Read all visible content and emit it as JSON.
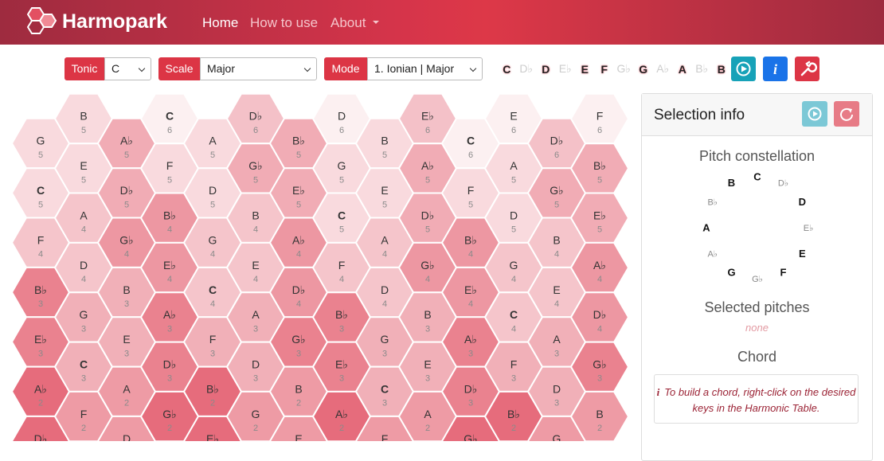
{
  "navbar": {
    "brand": "Harmopark",
    "links": [
      "Home",
      "How to use",
      "About"
    ]
  },
  "toolbar": {
    "tonic": {
      "label": "Tonic",
      "value": "C"
    },
    "scale": {
      "label": "Scale",
      "value": "Major"
    },
    "mode": {
      "label": "Mode",
      "value": "1. Ionian | Major"
    },
    "notes": [
      {
        "name": "C",
        "in_scale": true
      },
      {
        "name": "D♭",
        "in_scale": false
      },
      {
        "name": "D",
        "in_scale": true
      },
      {
        "name": "E♭",
        "in_scale": false
      },
      {
        "name": "E",
        "in_scale": true
      },
      {
        "name": "F",
        "in_scale": true
      },
      {
        "name": "G♭",
        "in_scale": false
      },
      {
        "name": "G",
        "in_scale": true
      },
      {
        "name": "A♭",
        "in_scale": false
      },
      {
        "name": "A",
        "in_scale": true
      },
      {
        "name": "B♭",
        "in_scale": false
      },
      {
        "name": "B",
        "in_scale": true
      }
    ]
  },
  "hex_grid": {
    "columns": [
      [
        {
          "note": "G",
          "octave": 5
        },
        {
          "note": "C",
          "octave": 5
        },
        {
          "note": "F",
          "octave": 4
        },
        {
          "note": "B♭",
          "octave": 3
        },
        {
          "note": "E♭",
          "octave": 3
        },
        {
          "note": "A♭",
          "octave": 2
        },
        {
          "note": "D♭"
        }
      ],
      [
        {
          "note": "B",
          "octave": 5
        },
        {
          "note": "E",
          "octave": 5
        },
        {
          "note": "A",
          "octave": 4
        },
        {
          "note": "D",
          "octave": 4
        },
        {
          "note": "G",
          "octave": 3
        },
        {
          "note": "C",
          "octave": 3
        },
        {
          "note": "F",
          "octave": 2
        }
      ],
      [
        {
          "note": "A♭",
          "octave": 5
        },
        {
          "note": "D♭",
          "octave": 5
        },
        {
          "note": "G♭",
          "octave": 4
        },
        {
          "note": "B",
          "octave": 3
        },
        {
          "note": "E",
          "octave": 3
        },
        {
          "note": "A",
          "octave": 2
        },
        {
          "note": "D"
        }
      ],
      [
        {
          "note": "C",
          "octave": 6
        },
        {
          "note": "F",
          "octave": 5
        },
        {
          "note": "B♭",
          "octave": 4
        },
        {
          "note": "E♭",
          "octave": 4
        },
        {
          "note": "A♭",
          "octave": 3
        },
        {
          "note": "D♭",
          "octave": 3
        },
        {
          "note": "G♭",
          "octave": 2
        }
      ],
      [
        {
          "note": "A",
          "octave": 5
        },
        {
          "note": "D",
          "octave": 5
        },
        {
          "note": "G",
          "octave": 4
        },
        {
          "note": "C",
          "octave": 4
        },
        {
          "note": "F",
          "octave": 3
        },
        {
          "note": "B♭",
          "octave": 2
        },
        {
          "note": "E♭"
        }
      ],
      [
        {
          "note": "D♭",
          "octave": 6
        },
        {
          "note": "G♭",
          "octave": 5
        },
        {
          "note": "B",
          "octave": 4
        },
        {
          "note": "E",
          "octave": 4
        },
        {
          "note": "A",
          "octave": 3
        },
        {
          "note": "D",
          "octave": 3
        },
        {
          "note": "G",
          "octave": 2
        }
      ],
      [
        {
          "note": "B♭",
          "octave": 5
        },
        {
          "note": "E♭",
          "octave": 5
        },
        {
          "note": "A♭",
          "octave": 4
        },
        {
          "note": "D♭",
          "octave": 4
        },
        {
          "note": "G♭",
          "octave": 3
        },
        {
          "note": "B",
          "octave": 2
        },
        {
          "note": "E"
        }
      ],
      [
        {
          "note": "D",
          "octave": 6
        },
        {
          "note": "G",
          "octave": 5
        },
        {
          "note": "C",
          "octave": 5
        },
        {
          "note": "F",
          "octave": 4
        },
        {
          "note": "B♭",
          "octave": 3
        },
        {
          "note": "E♭",
          "octave": 3
        },
        {
          "note": "A♭",
          "octave": 2
        }
      ],
      [
        {
          "note": "B",
          "octave": 5
        },
        {
          "note": "E",
          "octave": 5
        },
        {
          "note": "A",
          "octave": 4
        },
        {
          "note": "D",
          "octave": 4
        },
        {
          "note": "G",
          "octave": 3
        },
        {
          "note": "C",
          "octave": 3
        },
        {
          "note": "F"
        }
      ],
      [
        {
          "note": "E♭",
          "octave": 6
        },
        {
          "note": "A♭",
          "octave": 5
        },
        {
          "note": "D♭",
          "octave": 5
        },
        {
          "note": "G♭",
          "octave": 4
        },
        {
          "note": "B",
          "octave": 3
        },
        {
          "note": "E",
          "octave": 3
        },
        {
          "note": "A",
          "octave": 2
        }
      ],
      [
        {
          "note": "C",
          "octave": 6
        },
        {
          "note": "F",
          "octave": 5
        },
        {
          "note": "B♭",
          "octave": 4
        },
        {
          "note": "E♭",
          "octave": 4
        },
        {
          "note": "A♭",
          "octave": 3
        },
        {
          "note": "D♭",
          "octave": 3
        },
        {
          "note": "G♭"
        }
      ],
      [
        {
          "note": "E",
          "octave": 6
        },
        {
          "note": "A",
          "octave": 5
        },
        {
          "note": "D",
          "octave": 5
        },
        {
          "note": "G",
          "octave": 4
        },
        {
          "note": "C",
          "octave": 4
        },
        {
          "note": "F",
          "octave": 3
        },
        {
          "note": "B♭",
          "octave": 2
        }
      ],
      [
        {
          "note": "D♭",
          "octave": 6
        },
        {
          "note": "G♭",
          "octave": 5
        },
        {
          "note": "B",
          "octave": 4
        },
        {
          "note": "E",
          "octave": 4
        },
        {
          "note": "A",
          "octave": 3
        },
        {
          "note": "D",
          "octave": 3
        },
        {
          "note": "G"
        }
      ],
      [
        {
          "note": "F",
          "octave": 6
        },
        {
          "note": "B♭",
          "octave": 5
        },
        {
          "note": "E♭",
          "octave": 5
        },
        {
          "note": "A♭",
          "octave": 4
        },
        {
          "note": "D♭",
          "octave": 4
        },
        {
          "note": "G♭",
          "octave": 3
        },
        {
          "note": "B",
          "octave": 2
        }
      ]
    ]
  },
  "selection_info": {
    "title": "Selection info",
    "constellation": {
      "title": "Pitch constellation",
      "notes": [
        {
          "name": "C",
          "in_scale": true
        },
        {
          "name": "D♭",
          "in_scale": false
        },
        {
          "name": "D",
          "in_scale": true
        },
        {
          "name": "E♭",
          "in_scale": false
        },
        {
          "name": "E",
          "in_scale": true
        },
        {
          "name": "F",
          "in_scale": true
        },
        {
          "name": "G♭",
          "in_scale": false
        },
        {
          "name": "G",
          "in_scale": true
        },
        {
          "name": "A♭",
          "in_scale": false
        },
        {
          "name": "A",
          "in_scale": true
        },
        {
          "name": "B♭",
          "in_scale": false
        },
        {
          "name": "B",
          "in_scale": true
        }
      ]
    },
    "selected_pitches": {
      "title": "Selected pitches",
      "value": "none"
    },
    "chord": {
      "title": "Chord",
      "hint": "To build a chord, right-click on the desired keys in the Harmonic Table."
    }
  }
}
